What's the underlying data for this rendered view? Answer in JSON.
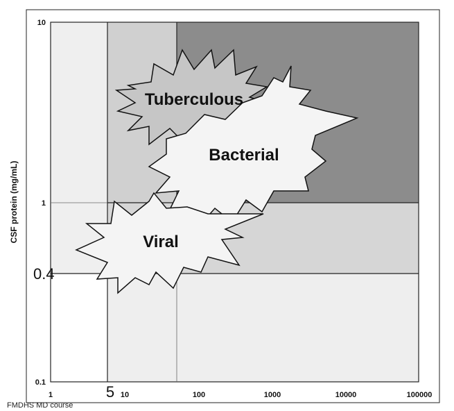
{
  "diagram": {
    "y_axis_label": "CSF protein  (mg/mL)",
    "y_ticks": [
      "10",
      "1",
      "0.1"
    ],
    "y_marker": "0.4",
    "x_ticks": [
      "1",
      "10",
      "100",
      "1000",
      "10000",
      "100000"
    ],
    "x_marker": "5",
    "zones": {
      "tuberculous": "Tuberculous",
      "bacterial": "Bacterial",
      "viral": "Viral"
    },
    "colors": {
      "darkest": "#8a8a8a",
      "mid": "#cbcbcb",
      "light": "#d9d9d9",
      "lightest": "#efefef",
      "white": "#ffffff",
      "burst_tb": "#c8c8c8",
      "burst_light": "#f4f4f4"
    }
  },
  "footer": {
    "credit": "FMDHS MD course"
  }
}
